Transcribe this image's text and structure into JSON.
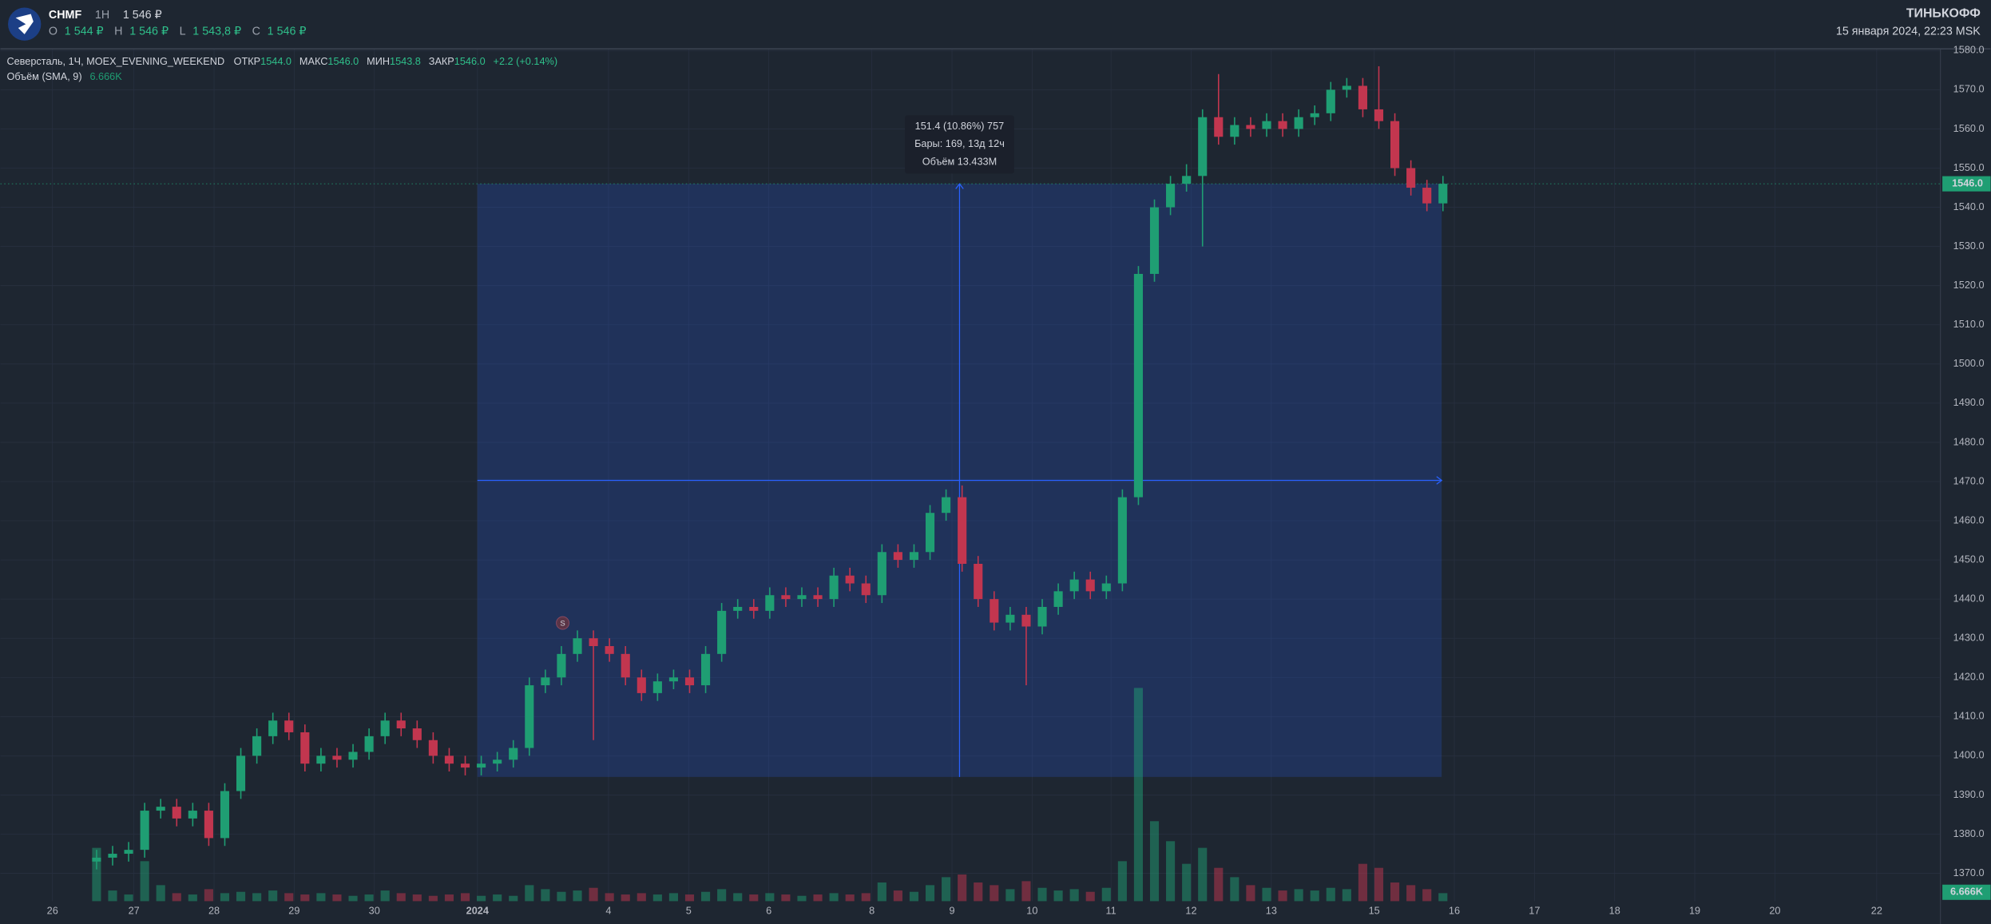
{
  "header": {
    "symbol": "CHMF",
    "interval": "1H",
    "price": "1 546 ₽",
    "ohlc": [
      {
        "label": "O",
        "value": "1 544 ₽"
      },
      {
        "label": "H",
        "value": "1 546 ₽"
      },
      {
        "label": "L",
        "value": "1 543,8 ₽"
      },
      {
        "label": "C",
        "value": "1 546 ₽"
      }
    ],
    "brand": "ТИНЬКОФФ",
    "datetime": "15 января 2024, 22:23 MSK"
  },
  "legend": {
    "title": "Северсталь, 1Ч, MOEX_EVENING_WEEKEND",
    "fields": [
      {
        "label": "ОТКР",
        "value": "1544.0"
      },
      {
        "label": "МАКС",
        "value": "1546.0"
      },
      {
        "label": "МИН",
        "value": "1543.8"
      },
      {
        "label": "ЗАКР",
        "value": "1546.0"
      }
    ],
    "change": "+2.2 (+0.14%)",
    "volume_title": "Объём (SMA, 9)"
  },
  "chart_data": {
    "type": "candlestick",
    "x": [
      6,
      7,
      8,
      9,
      10,
      11,
      12,
      13,
      14,
      15,
      16,
      17,
      18,
      19,
      20,
      21,
      22,
      23,
      24,
      25,
      26,
      27,
      28,
      29,
      30,
      31,
      32,
      33,
      34,
      35,
      36,
      37,
      38,
      39,
      40,
      41,
      42,
      43,
      44,
      45,
      46,
      47,
      48,
      49,
      50,
      51,
      52,
      53,
      54,
      55,
      56,
      57,
      58,
      59,
      60,
      61,
      62,
      63,
      64,
      65,
      66,
      67,
      68,
      69,
      70,
      71,
      72,
      73,
      74,
      75,
      76,
      77,
      78,
      79,
      80,
      81,
      82,
      83,
      84,
      85,
      86,
      87,
      88,
      89,
      90
    ],
    "open": [
      1373,
      1374,
      1375,
      1376,
      1386,
      1387,
      1384,
      1386,
      1379,
      1391,
      1400,
      1405,
      1409,
      1406,
      1398,
      1400,
      1399,
      1401,
      1405,
      1409,
      1407,
      1404,
      1400,
      1398,
      1397,
      1398,
      1399,
      1402,
      1418,
      1420,
      1426,
      1430,
      1428,
      1426,
      1420,
      1416,
      1419,
      1420,
      1418,
      1426,
      1437,
      1438,
      1437,
      1441,
      1440,
      1441,
      1440,
      1446,
      1444,
      1441,
      1452,
      1450,
      1452,
      1462,
      1466,
      1449,
      1440,
      1434,
      1436,
      1433,
      1438,
      1442,
      1445,
      1442,
      1444,
      1466,
      1523,
      1540,
      1546,
      1548,
      1563,
      1558,
      1561,
      1560,
      1562,
      1560,
      1563,
      1564,
      1570,
      1571,
      1565,
      1562,
      1550,
      1545,
      1541
    ],
    "high": [
      1376,
      1377,
      1378,
      1388,
      1389,
      1389,
      1388,
      1388,
      1393,
      1402,
      1407,
      1411,
      1411,
      1408,
      1402,
      1402,
      1403,
      1407,
      1411,
      1411,
      1409,
      1406,
      1402,
      1400,
      1400,
      1401,
      1404,
      1420,
      1422,
      1428,
      1432,
      1432,
      1430,
      1428,
      1422,
      1421,
      1422,
      1422,
      1428,
      1439,
      1440,
      1440,
      1443,
      1443,
      1443,
      1443,
      1448,
      1448,
      1446,
      1454,
      1454,
      1454,
      1464,
      1468,
      1469,
      1451,
      1442,
      1438,
      1438,
      1440,
      1444,
      1447,
      1447,
      1446,
      1468,
      1525,
      1542,
      1548,
      1551,
      1565,
      1574,
      1563,
      1563,
      1564,
      1564,
      1565,
      1566,
      1572,
      1573,
      1573,
      1576,
      1564,
      1552,
      1547,
      1548
    ],
    "low": [
      1371,
      1372,
      1373,
      1374,
      1384,
      1382,
      1382,
      1377,
      1377,
      1389,
      1398,
      1403,
      1404,
      1396,
      1396,
      1397,
      1397,
      1399,
      1403,
      1405,
      1402,
      1398,
      1396,
      1395,
      1395,
      1396,
      1397,
      1400,
      1416,
      1418,
      1424,
      1404,
      1424,
      1418,
      1414,
      1414,
      1417,
      1416,
      1416,
      1424,
      1435,
      1435,
      1435,
      1438,
      1438,
      1438,
      1438,
      1442,
      1439,
      1439,
      1448,
      1448,
      1450,
      1460,
      1447,
      1438,
      1432,
      1432,
      1418,
      1431,
      1436,
      1440,
      1440,
      1440,
      1442,
      1464,
      1521,
      1538,
      1544,
      1530,
      1556,
      1556,
      1558,
      1558,
      1558,
      1558,
      1561,
      1562,
      1568,
      1563,
      1560,
      1548,
      1543,
      1539,
      1539
    ],
    "close": [
      1374,
      1375,
      1376,
      1386,
      1387,
      1384,
      1386,
      1379,
      1391,
      1400,
      1405,
      1409,
      1406,
      1398,
      1400,
      1399,
      1401,
      1405,
      1409,
      1407,
      1404,
      1400,
      1398,
      1397,
      1398,
      1399,
      1402,
      1418,
      1420,
      1426,
      1430,
      1428,
      1426,
      1420,
      1416,
      1419,
      1420,
      1418,
      1426,
      1437,
      1438,
      1437,
      1441,
      1440,
      1441,
      1440,
      1446,
      1444,
      1441,
      1452,
      1450,
      1452,
      1462,
      1466,
      1449,
      1440,
      1434,
      1436,
      1433,
      1438,
      1442,
      1445,
      1442,
      1444,
      1466,
      1523,
      1540,
      1546,
      1548,
      1563,
      1558,
      1561,
      1560,
      1562,
      1560,
      1563,
      1564,
      1570,
      1571,
      1565,
      1562,
      1550,
      1545,
      1541,
      1546
    ],
    "volume": [
      40000,
      8000,
      5000,
      30000,
      12000,
      6000,
      5000,
      9000,
      6000,
      7000,
      6000,
      8000,
      6000,
      5000,
      6000,
      5000,
      4000,
      5000,
      8000,
      6000,
      5000,
      4000,
      5000,
      6000,
      4000,
      5000,
      4000,
      12000,
      9000,
      7000,
      8000,
      10000,
      6000,
      5000,
      6000,
      5000,
      6000,
      5000,
      7000,
      9000,
      6000,
      5000,
      6000,
      5000,
      4000,
      5000,
      6000,
      5000,
      6000,
      14000,
      8000,
      7000,
      12000,
      18000,
      20000,
      14000,
      12000,
      9000,
      15000,
      10000,
      8000,
      9000,
      7000,
      10000,
      30000,
      160000,
      60000,
      45000,
      28000,
      40000,
      25000,
      18000,
      12000,
      10000,
      8000,
      9000,
      8000,
      10000,
      9000,
      28000,
      25000,
      14000,
      12000,
      9000,
      6000
    ],
    "up_color": "#1f9e73",
    "down_color": "#c2364f",
    "xlim": [
      0,
      121
    ],
    "ylim": [
      1362.9,
      1580.6
    ],
    "y2lim": [
      0,
      640000
    ],
    "grid": true,
    "yticks": [
      {
        "value": 1370,
        "label": "1370.0"
      },
      {
        "value": 1380,
        "label": "1380.0"
      },
      {
        "value": 1390,
        "label": "1390.0"
      },
      {
        "value": 1400,
        "label": "1400.0"
      },
      {
        "value": 1410,
        "label": "1410.0"
      },
      {
        "value": 1420,
        "label": "1420.0"
      },
      {
        "value": 1430,
        "label": "1430.0"
      },
      {
        "value": 1440,
        "label": "1440.0"
      },
      {
        "value": 1450,
        "label": "1450.0"
      },
      {
        "value": 1460,
        "label": "1460.0"
      },
      {
        "value": 1470,
        "label": "1470.0"
      },
      {
        "value": 1480,
        "label": "1480.0"
      },
      {
        "value": 1490,
        "label": "1490.0"
      },
      {
        "value": 1500,
        "label": "1500.0"
      },
      {
        "value": 1510,
        "label": "1510.0"
      },
      {
        "value": 1520,
        "label": "1520.0"
      },
      {
        "value": 1530,
        "label": "1530.0"
      },
      {
        "value": 1540,
        "label": "1540.0"
      },
      {
        "value": 1550,
        "label": "1550.0"
      },
      {
        "value": 1560,
        "label": "1560.0"
      },
      {
        "value": 1570,
        "label": "1570.0"
      },
      {
        "value": 1580,
        "label": "1580.0"
      }
    ],
    "xticks": [
      {
        "value": 3.25,
        "label": "26"
      },
      {
        "value": 8.33,
        "label": "27"
      },
      {
        "value": 13.33,
        "label": "28"
      },
      {
        "value": 18.33,
        "label": "29"
      },
      {
        "value": 23.33,
        "label": "30"
      },
      {
        "value": 29.76,
        "label": "2024"
      },
      {
        "value": 37.94,
        "label": "4"
      },
      {
        "value": 42.94,
        "label": "5"
      },
      {
        "value": 47.94,
        "label": "6"
      },
      {
        "value": 54.37,
        "label": "8"
      },
      {
        "value": 59.37,
        "label": "9"
      },
      {
        "value": 64.37,
        "label": "10"
      },
      {
        "value": 69.29,
        "label": "11"
      },
      {
        "value": 74.29,
        "label": "12"
      },
      {
        "value": 79.29,
        "label": "13"
      },
      {
        "value": 85.71,
        "label": "15"
      },
      {
        "value": 90.71,
        "label": "16"
      },
      {
        "value": 95.71,
        "label": "17"
      },
      {
        "value": 100.71,
        "label": "18"
      },
      {
        "value": 105.71,
        "label": "19"
      },
      {
        "value": 110.71,
        "label": "20"
      },
      {
        "value": 117.06,
        "label": "22"
      }
    ],
    "last_price": {
      "value": 1546,
      "label": "1546.0"
    },
    "volume_sma": {
      "value": 6666,
      "label": "6.666K"
    },
    "measure": {
      "x": [
        29.76,
        89.92
      ],
      "y": [
        1394.6,
        1546
      ],
      "lines": [
        "151.4 (10.86%) 757",
        "Бары: 169, 13д 12ч",
        "Объём 13.433M"
      ]
    },
    "marker": {
      "x": 35.08,
      "y": 1433.9,
      "label": "S"
    }
  }
}
